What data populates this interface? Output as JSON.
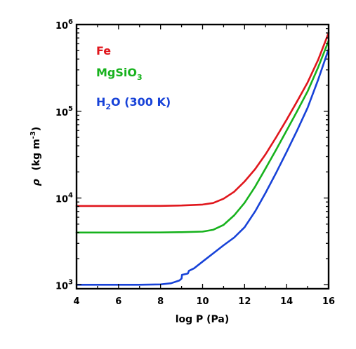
{
  "chart_data": {
    "type": "line",
    "xlabel": "log P (Pa)",
    "ylabel": {
      "symbol": "ρ",
      "unit_open": "(kg m",
      "unit_exp": "-3",
      "unit_close": ")"
    },
    "xlim": [
      4,
      16
    ],
    "ylim": [
      900,
      1000000
    ],
    "yscale": "log",
    "x_ticks": [
      "4",
      "6",
      "8",
      "10",
      "12",
      "14",
      "16"
    ],
    "y_ticks": [
      {
        "base": "10",
        "exp": "3"
      },
      {
        "base": "10",
        "exp": "4"
      },
      {
        "base": "10",
        "exp": "5"
      },
      {
        "base": "10",
        "exp": "6"
      }
    ],
    "grid": false,
    "legend_position": "top-left",
    "series": [
      {
        "name": "Fe",
        "legend": {
          "main": "Fe",
          "sub": "",
          "tail": ""
        },
        "color": "#e0161c",
        "x": [
          4,
          6,
          8,
          9,
          10,
          10.5,
          11,
          11.5,
          12,
          12.5,
          13,
          13.5,
          14,
          14.5,
          15,
          15.5,
          16
        ],
        "y": [
          8100,
          8100,
          8120,
          8200,
          8400,
          8750,
          9800,
          11800,
          15500,
          21500,
          32000,
          50000,
          80000,
          130000,
          215000,
          390000,
          800000
        ]
      },
      {
        "name": "MgSiO3",
        "legend": {
          "main": "MgSiO",
          "sub": "3",
          "tail": ""
        },
        "color": "#17b21d",
        "x": [
          4,
          6,
          8,
          9,
          10,
          10.5,
          11,
          11.5,
          12,
          12.5,
          13,
          13.5,
          14,
          14.5,
          15,
          15.5,
          16
        ],
        "y": [
          4000,
          4000,
          4010,
          4040,
          4100,
          4300,
          4900,
          6300,
          8800,
          13500,
          22000,
          36000,
          60000,
          100000,
          170000,
          320000,
          650000
        ]
      },
      {
        "name": "H2O (300 K)",
        "legend": {
          "main": "H",
          "sub": "2",
          "tail": "O (300 K)"
        },
        "color": "#1742d8",
        "x": [
          4,
          6,
          7,
          8,
          8.5,
          8.9,
          9.0,
          9.02,
          9.2,
          9.3,
          9.35,
          9.6,
          10,
          10.5,
          11,
          11.5,
          12,
          12.5,
          13,
          13.5,
          14,
          14.5,
          15,
          15.5,
          16
        ],
        "y": [
          1000,
          1000,
          1000,
          1010,
          1040,
          1120,
          1180,
          1300,
          1330,
          1350,
          1450,
          1550,
          1850,
          2300,
          2850,
          3500,
          4600,
          7000,
          11500,
          19500,
          34000,
          60000,
          110000,
          230000,
          520000
        ]
      }
    ]
  }
}
